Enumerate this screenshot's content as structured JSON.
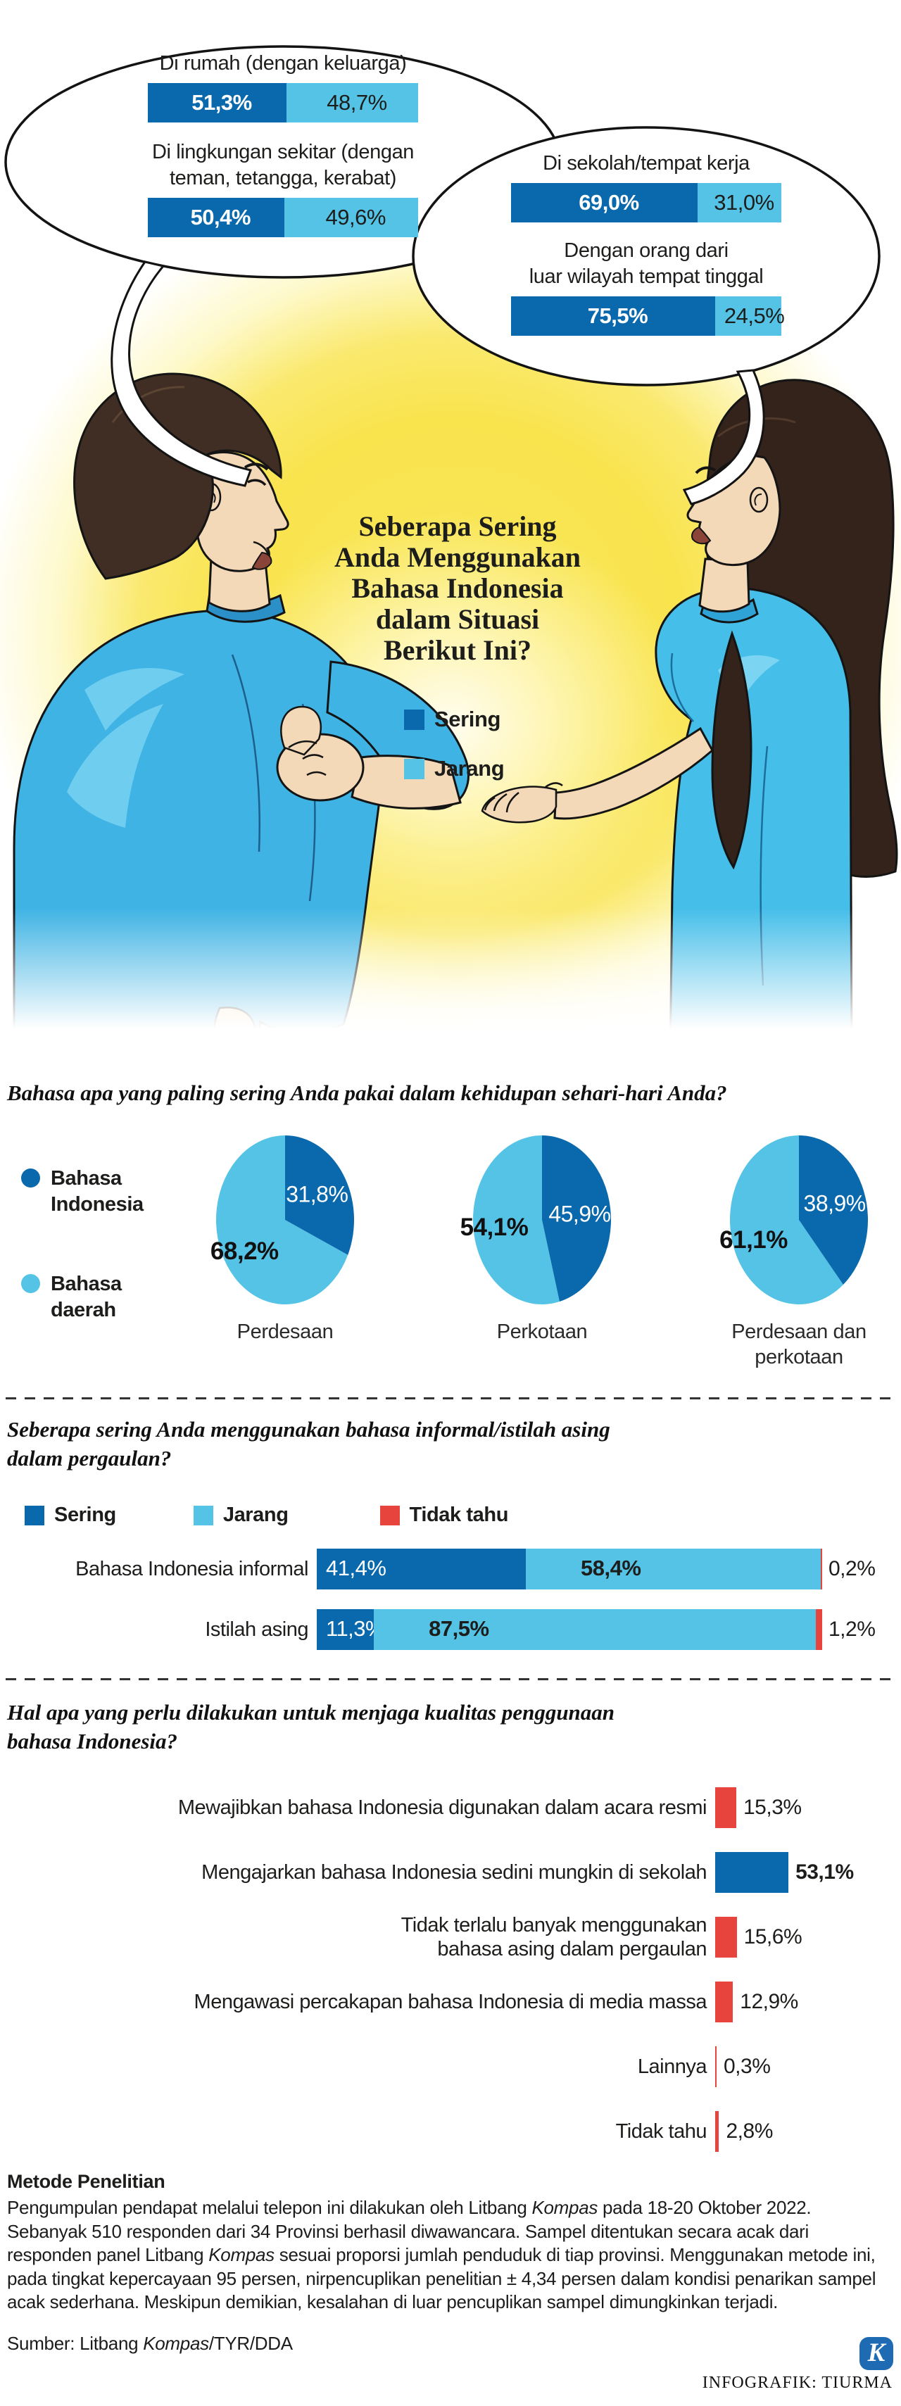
{
  "colors": {
    "dark_blue": "#0a69ac",
    "light_blue": "#54c3e6",
    "red": "#e8443e",
    "kompas_blue": "#1e6bb4",
    "glow_yellow": "#f9e44e",
    "text": "#1d1d1b"
  },
  "bubble_left": {
    "items": [
      {
        "title_line1": "Di rumah (dengan keluarga)",
        "title_line2": "",
        "sering_label": "51,3%",
        "jarang_label": "48,7%",
        "sering": 51.3,
        "jarang": 48.7
      },
      {
        "title_line1": "Di lingkungan sekitar (dengan",
        "title_line2": "teman, tetangga, kerabat)",
        "sering_label": "50,4%",
        "jarang_label": "49,6%",
        "sering": 50.4,
        "jarang": 49.6
      }
    ]
  },
  "bubble_right": {
    "items": [
      {
        "title_line1": "Di sekolah/tempat kerja",
        "title_line2": "",
        "sering_label": "69,0%",
        "jarang_label": "31,0%",
        "sering": 69.0,
        "jarang": 31.0
      },
      {
        "title_line1": "Dengan orang dari",
        "title_line2": "luar wilayah tempat tinggal",
        "sering_label": "75,5%",
        "jarang_label": "24,5%",
        "sering": 75.5,
        "jarang": 24.5
      }
    ]
  },
  "center": {
    "title_lines": [
      "Seberapa Sering",
      "Anda Menggunakan",
      "Bahasa Indonesia",
      "dalam Situasi",
      "Berikut Ini?"
    ],
    "legend": [
      {
        "label": "Sering"
      },
      {
        "label": "Jarang"
      }
    ]
  },
  "section2": {
    "title": "Bahasa apa yang paling sering Anda pakai dalam kehidupan sehari-hari Anda?",
    "legend": [
      {
        "line1": "Bahasa",
        "line2": "Indonesia"
      },
      {
        "line1": "Bahasa",
        "line2": "daerah"
      }
    ],
    "pies": [
      {
        "dark_label": "31,8%",
        "light_label": "68,2%",
        "dark": 31.8,
        "light": 68.2,
        "caption_line1": "Perdesaan",
        "caption_line2": ""
      },
      {
        "dark_label": "45,9%",
        "light_label": "54,1%",
        "dark": 45.9,
        "light": 54.1,
        "caption_line1": "Perkotaan",
        "caption_line2": ""
      },
      {
        "dark_label": "38,9%",
        "light_label": "61,1%",
        "dark": 38.9,
        "light": 61.1,
        "caption_line1": "Perdesaan dan",
        "caption_line2": "perkotaan"
      }
    ]
  },
  "section3": {
    "title_line1": "Seberapa sering Anda menggunakan bahasa informal/istilah asing",
    "title_line2": "dalam pergaulan?",
    "legend": [
      {
        "label": "Sering"
      },
      {
        "label": "Jarang"
      },
      {
        "label": "Tidak tahu"
      }
    ],
    "rows": [
      {
        "label": "Bahasa Indonesia informal",
        "sering_label": "41,4%",
        "jarang_label": "58,4%",
        "outside_label": "0,2%",
        "sering": 41.4,
        "jarang": 58.4,
        "tidak_tahu": 0.2
      },
      {
        "label": "Istilah asing",
        "sering_label": "11,3%",
        "jarang_label": "87,5%",
        "outside_label": "1,2%",
        "sering": 11.3,
        "jarang": 87.5,
        "tidak_tahu": 1.2
      }
    ]
  },
  "section4": {
    "title_line1": "Hal apa yang perlu dilakukan untuk menjaga kualitas penggunaan",
    "title_line2": "bahasa Indonesia?",
    "rows": [
      {
        "label_line1": "Mewajibkan bahasa Indonesia digunakan dalam acara resmi",
        "label_line2": "",
        "value_label": "15,3%",
        "value": 15.3,
        "highlight": false
      },
      {
        "label_line1": "Mengajarkan bahasa Indonesia sedini mungkin di sekolah",
        "label_line2": "",
        "value_label": "53,1%",
        "value": 53.1,
        "highlight": true
      },
      {
        "label_line1": "Tidak terlalu banyak menggunakan",
        "label_line2": "bahasa asing dalam pergaulan",
        "value_label": "15,6%",
        "value": 15.6,
        "highlight": false
      },
      {
        "label_line1": "Mengawasi percakapan bahasa Indonesia di media massa",
        "label_line2": "",
        "value_label": "12,9%",
        "value": 12.9,
        "highlight": false
      },
      {
        "label_line1": "Lainnya",
        "label_line2": "",
        "value_label": "0,3%",
        "value": 0.3,
        "highlight": false
      },
      {
        "label_line1": "Tidak tahu",
        "label_line2": "",
        "value_label": "2,8%",
        "value": 2.8,
        "highlight": false
      }
    ]
  },
  "footer": {
    "method_title": "Metode Penelitian",
    "method_segments": [
      {
        "text": "Pengumpulan pendapat melalui telepon ini dilakukan oleh Litbang ",
        "italic": false
      },
      {
        "text": "Kompas",
        "italic": true
      },
      {
        "text": " pada 18-20 Oktober 2022. Sebanyak 510 responden dari 34 Provinsi berhasil diwawancara. Sampel ditentukan secara acak dari responden panel Litbang ",
        "italic": false
      },
      {
        "text": "Kompas",
        "italic": true
      },
      {
        "text": " sesuai proporsi jumlah penduduk di tiap provinsi. Menggunakan metode ini, pada tingkat kepercayaan 95 persen, nirpencuplikan penelitian ± 4,34 persen dalam kondisi penarikan sampel acak sederhana. Meskipun demikian, kesalahan di luar pencuplikan sampel dimungkinkan terjadi.",
        "italic": false
      }
    ],
    "source_segments": [
      {
        "text": "Sumber: Litbang ",
        "italic": false
      },
      {
        "text": "Kompas",
        "italic": true
      },
      {
        "text": "/TYR/DDA",
        "italic": false
      }
    ],
    "credit": "INFOGRAFIK: TIURMA",
    "logo_letter": "K"
  },
  "chart_data": [
    {
      "type": "bar",
      "layout": "stacked-horizontal",
      "unit": "%",
      "title": "Seberapa Sering Anda Menggunakan Bahasa Indonesia dalam Situasi Berikut Ini?",
      "categories": [
        "Di rumah (dengan keluarga)",
        "Di lingkungan sekitar (dengan teman, tetangga, kerabat)",
        "Di sekolah/tempat kerja",
        "Dengan orang dari luar wilayah tempat tinggal"
      ],
      "series": [
        {
          "name": "Sering",
          "values": [
            51.3,
            50.4,
            69.0,
            75.5
          ]
        },
        {
          "name": "Jarang",
          "values": [
            48.7,
            49.6,
            31.0,
            24.5
          ]
        }
      ],
      "legend_position": "center"
    },
    {
      "type": "pie",
      "unit": "%",
      "title": "Bahasa apa yang paling sering Anda pakai dalam kehidupan sehari-hari Anda?",
      "categories": [
        "Bahasa Indonesia",
        "Bahasa daerah"
      ],
      "series": [
        {
          "name": "Perdesaan",
          "values": [
            31.8,
            68.2
          ]
        },
        {
          "name": "Perkotaan",
          "values": [
            45.9,
            54.1
          ]
        },
        {
          "name": "Perdesaan dan perkotaan",
          "values": [
            38.9,
            61.1
          ]
        }
      ],
      "legend_position": "left"
    },
    {
      "type": "bar",
      "layout": "stacked-horizontal",
      "unit": "%",
      "title": "Seberapa sering Anda menggunakan bahasa informal/istilah asing dalam pergaulan?",
      "categories": [
        "Bahasa Indonesia informal",
        "Istilah asing"
      ],
      "series": [
        {
          "name": "Sering",
          "values": [
            41.4,
            11.3
          ]
        },
        {
          "name": "Jarang",
          "values": [
            58.4,
            87.5
          ]
        },
        {
          "name": "Tidak tahu",
          "values": [
            0.2,
            1.2
          ]
        }
      ],
      "legend_position": "top"
    },
    {
      "type": "bar",
      "layout": "horizontal",
      "unit": "%",
      "title": "Hal apa yang perlu dilakukan untuk menjaga kualitas penggunaan bahasa Indonesia?",
      "categories": [
        "Mewajibkan bahasa Indonesia digunakan dalam acara resmi",
        "Mengajarkan bahasa Indonesia sedini mungkin di sekolah",
        "Tidak terlalu banyak menggunakan bahasa asing dalam pergaulan",
        "Mengawasi percakapan bahasa Indonesia di media massa",
        "Lainnya",
        "Tidak tahu"
      ],
      "values": [
        15.3,
        53.1,
        15.6,
        12.9,
        0.3,
        2.8
      ],
      "highlight_category": "Mengajarkan bahasa Indonesia sedini mungkin di sekolah"
    }
  ]
}
